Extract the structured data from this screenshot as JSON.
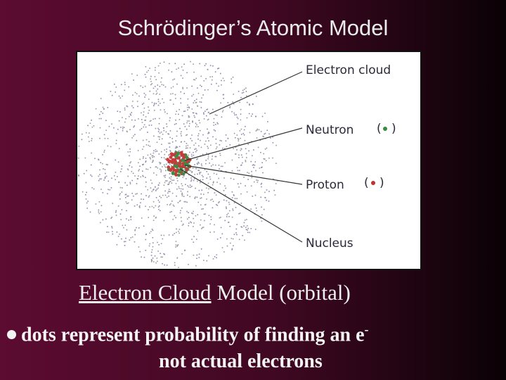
{
  "title": "Schrödinger’s Atomic Model",
  "diagram": {
    "labels": [
      "Electron cloud",
      "Neutron",
      "Proton",
      "Nucleus"
    ]
  },
  "caption": {
    "underlined": "Electron Cloud",
    "rest": "Model (orbital)"
  },
  "bullet": {
    "text": "dots represent probability of finding an e",
    "superscript": "-",
    "continuation": "not actual electrons"
  }
}
